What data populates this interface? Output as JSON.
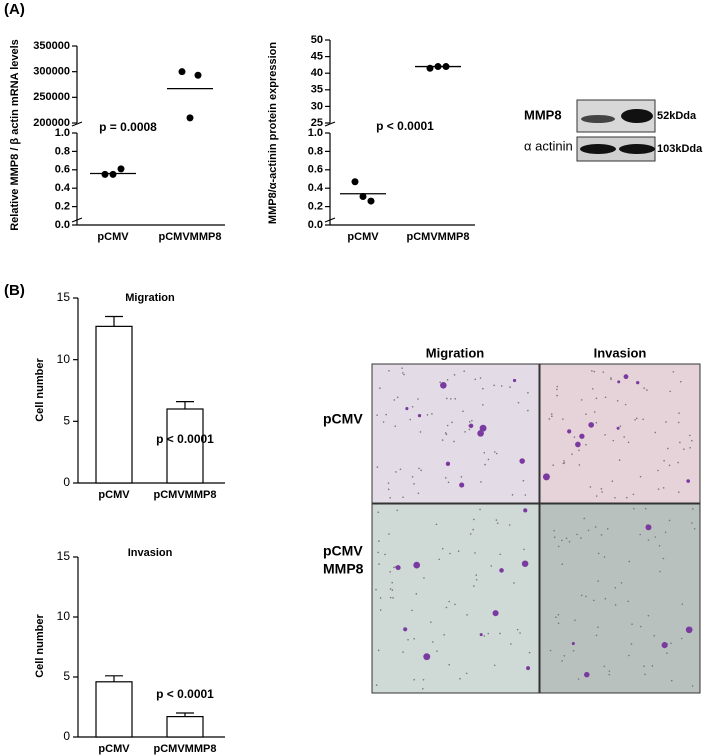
{
  "panels": [
    "(A)",
    "(B)"
  ],
  "chart_data": [
    {
      "type": "scatter",
      "ylabel": "Relative MMP8 / β actin mRNA levels",
      "categories": [
        "pCMV",
        "pCMVMMP8"
      ],
      "points": [
        [
          0.55,
          0.61,
          0.55
        ],
        [
          300000,
          293000,
          210000
        ]
      ],
      "means": [
        0.56,
        267000
      ],
      "annotation": "p = 0.0008",
      "color": "#000000",
      "segments": [
        {
          "ylim": [
            0,
            1
          ],
          "yticks": [
            {
              "value": 0,
              "label": "0.0"
            },
            0.2,
            0.4,
            0.6,
            0.8,
            {
              "value": 1,
              "label": "1.0"
            }
          ]
        },
        {
          "ylim": [
            200000,
            350000
          ],
          "yticks": [
            200000,
            250000,
            300000,
            350000
          ]
        }
      ]
    },
    {
      "type": "scatter",
      "ylabel": "MMP8/α-actinin protein expression",
      "categories": [
        "pCMV",
        "pCMVMMP8"
      ],
      "points": [
        [
          0.47,
          0.26,
          0.31
        ],
        [
          41.5,
          42,
          42
        ]
      ],
      "means": [
        0.34,
        42
      ],
      "annotation": "p < 0.0001",
      "color": "#000000",
      "segments": [
        {
          "ylim": [
            0,
            1
          ],
          "yticks": [
            {
              "value": 0,
              "label": "0.0"
            },
            0.2,
            0.4,
            0.6,
            0.8,
            {
              "value": 1,
              "label": "1.0"
            }
          ]
        },
        {
          "ylim": [
            25,
            50
          ],
          "yticks": [
            25,
            30,
            35,
            40,
            45,
            50
          ]
        }
      ]
    },
    {
      "type": "bar",
      "title": "Migration",
      "ylabel": "Cell number",
      "categories": [
        "pCMV",
        "pCMVMMP8"
      ],
      "values": [
        12.7,
        6.0
      ],
      "errors": [
        0.8,
        0.6
      ],
      "ylim": [
        0,
        15
      ],
      "yticks": [
        0,
        5,
        10,
        15
      ],
      "annotation": "p < 0.0001",
      "color": "#ffffff"
    },
    {
      "type": "bar",
      "title": "Invasion",
      "ylabel": "Cell number",
      "categories": [
        "pCMV",
        "pCMVMMP8"
      ],
      "values": [
        4.6,
        1.7
      ],
      "errors": [
        0.5,
        0.3
      ],
      "ylim": [
        0,
        15
      ],
      "yticks": [
        0,
        5,
        10,
        15
      ],
      "annotation": "p < 0.0001",
      "color": "#ffffff"
    }
  ],
  "blot": {
    "rows": [
      "MMP8",
      "α actinin"
    ],
    "markers": [
      "52kDda",
      "103kDda"
    ]
  },
  "micrographs": {
    "columns": [
      "Migration",
      "Invasion"
    ],
    "rows": [
      [
        "pCMV"
      ],
      [
        "pCMV",
        "MMP8"
      ]
    ]
  }
}
